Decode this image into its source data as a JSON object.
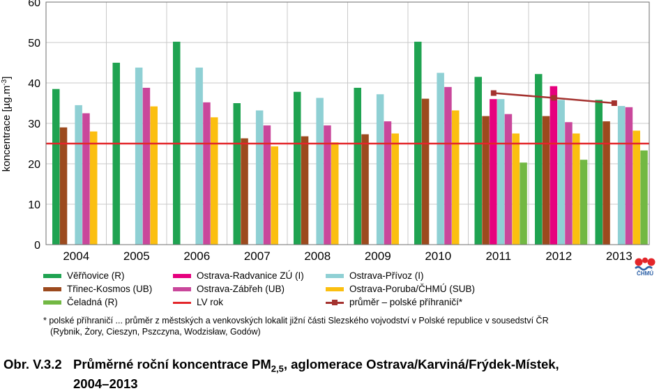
{
  "chart_data": {
    "type": "bar",
    "ylabel_main": "koncentrace [µg.m",
    "ylabel_sup": "-3",
    "ylabel_end": "]",
    "ylim": [
      0,
      60
    ],
    "yticks": [
      0,
      10,
      20,
      30,
      40,
      50,
      60
    ],
    "categories": [
      "2004",
      "2005",
      "2006",
      "2007",
      "2008",
      "2009",
      "2010",
      "2011",
      "2012",
      "2013"
    ],
    "series": [
      {
        "name": "Věřňovice (R)",
        "color": "#1fa351",
        "values": [
          38.5,
          45,
          50.2,
          35,
          37.8,
          38.8,
          50.2,
          41.5,
          42.2,
          35.8
        ]
      },
      {
        "name": "Třinec-Kosmos (UB)",
        "color": "#9c4a1e",
        "values": [
          null,
          null,
          null,
          null,
          null,
          null,
          null,
          null,
          null,
          null
        ]
      },
      {
        "name": "Ostrava-Radvanice ZÚ (I)",
        "color": "#e6007e",
        "values": [
          null,
          null,
          null,
          null,
          null,
          null,
          null,
          36,
          39.2,
          null
        ]
      },
      {
        "name": "Ostrava-Přívoz (I)",
        "color": "#8fd0d4",
        "values": [
          34.5,
          43.8,
          43.8,
          33.2,
          36.3,
          37.2,
          42.5,
          36,
          35.8,
          34.3
        ]
      },
      {
        "name": "Ostrava-Zábřeh (UB)",
        "color": "#c9479b",
        "values": [
          32.5,
          38.8,
          35.2,
          29.5,
          29.5,
          30.5,
          39,
          32.3,
          30.3,
          34
        ]
      },
      {
        "name": "Ostrava-Poruba/ČHMÚ (SUB)",
        "color": "#fbbf10",
        "values": [
          28,
          34.2,
          31.5,
          24.3,
          25.3,
          27.5,
          33.2,
          27.5,
          27.5,
          28.2
        ]
      },
      {
        "name": "Čeladná (R)",
        "color": "#72b843",
        "values": [
          null,
          null,
          null,
          null,
          null,
          null,
          null,
          20.3,
          21,
          23.3
        ]
      }
    ],
    "trinec_values": [
      29,
      null,
      null,
      26.3,
      26.8,
      27.3,
      36.1,
      31.8,
      31.8,
      30.5
    ],
    "lv": {
      "name": "LV rok",
      "color": "#e3262a",
      "value": 25
    },
    "polish_avg": {
      "name": "průměr – polské příhraničí*",
      "color": "#a4322f",
      "x": [
        "2011",
        "2012",
        "2013"
      ],
      "values": [
        37.5,
        36.3,
        35
      ]
    }
  },
  "legend": [
    {
      "label": "Věřňovice (R)",
      "color": "#1fa351",
      "kind": "bar"
    },
    {
      "label": "Ostrava-Radvanice ZÚ (I)",
      "color": "#e6007e",
      "kind": "bar"
    },
    {
      "label": "Ostrava-Přívoz (I)",
      "color": "#8fd0d4",
      "kind": "bar"
    },
    {
      "label": "Třinec-Kosmos (UB)",
      "color": "#9c4a1e",
      "kind": "bar"
    },
    {
      "label": "Ostrava-Zábřeh (UB)",
      "color": "#c9479b",
      "kind": "bar"
    },
    {
      "label": "Ostrava-Poruba/ČHMÚ (SUB)",
      "color": "#fbbf10",
      "kind": "bar"
    },
    {
      "label": "Čeladná (R)",
      "color": "#72b843",
      "kind": "bar"
    },
    {
      "label": "LV rok",
      "color": "#e3262a",
      "kind": "line"
    },
    {
      "label": "průměr – polské příhraničí*",
      "color": "#a4322f",
      "kind": "marker-line"
    }
  ],
  "note": {
    "line1": "* polské příhraničí ... průměr z městských a venkovských lokalit jižní části Slezského vojvodství v Polské republice v sousedství ČR",
    "line2": "(Rybnik, Żory, Cieszyn, Pszczyna, Wodzisław, Godów)"
  },
  "caption": {
    "number": "Obr. V.3.2",
    "text_before": "Průměrné roční koncentrace PM",
    "subscript": "2,5",
    "text_after": ", aglomerace Ostrava/Karviná/Frýdek-Místek,",
    "line2": "2004–2013"
  },
  "logo": {
    "text": "ČHMÚ",
    "icon": "chmu-logo-icon",
    "red": "#e3262a",
    "blue": "#2a5fa6"
  }
}
